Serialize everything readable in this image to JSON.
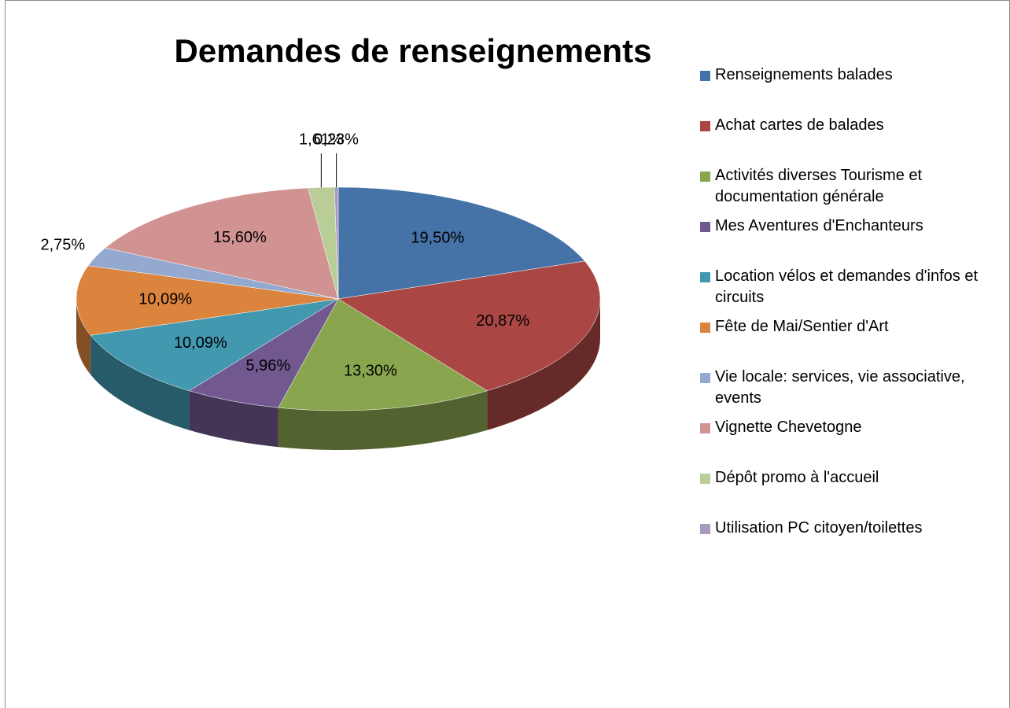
{
  "chart_data": {
    "type": "pie3d",
    "title": "Demandes de renseignements",
    "categories": [
      "Renseignements balades",
      "Achat cartes de balades",
      "Activités diverses Tourisme et documentation générale",
      "Mes Aventures d'Enchanteurs",
      "Location vélos et demandes d'infos et circuits",
      "Fête de Mai/Sentier d'Art",
      "Vie locale: services, vie associative, events",
      "Vignette Chevetogne",
      "Dépôt promo à l'accueil",
      "Utilisation PC citoyen/toilettes"
    ],
    "values": [
      19.5,
      20.87,
      13.3,
      5.96,
      10.09,
      10.09,
      2.75,
      15.6,
      1.61,
      0.23
    ],
    "value_labels": [
      "19,50%",
      "20,87%",
      "13,30%",
      "5,96%",
      "10,09%",
      "10,09%",
      "2,75%",
      "15,60%",
      "1,61%",
      "0,23%"
    ],
    "colors": [
      "#4572a7",
      "#aa4643",
      "#89a54e",
      "#71588f",
      "#4198af",
      "#db843d",
      "#93a9cf",
      "#d19392",
      "#b9cd96",
      "#a99bbd"
    ],
    "legend": "right"
  }
}
